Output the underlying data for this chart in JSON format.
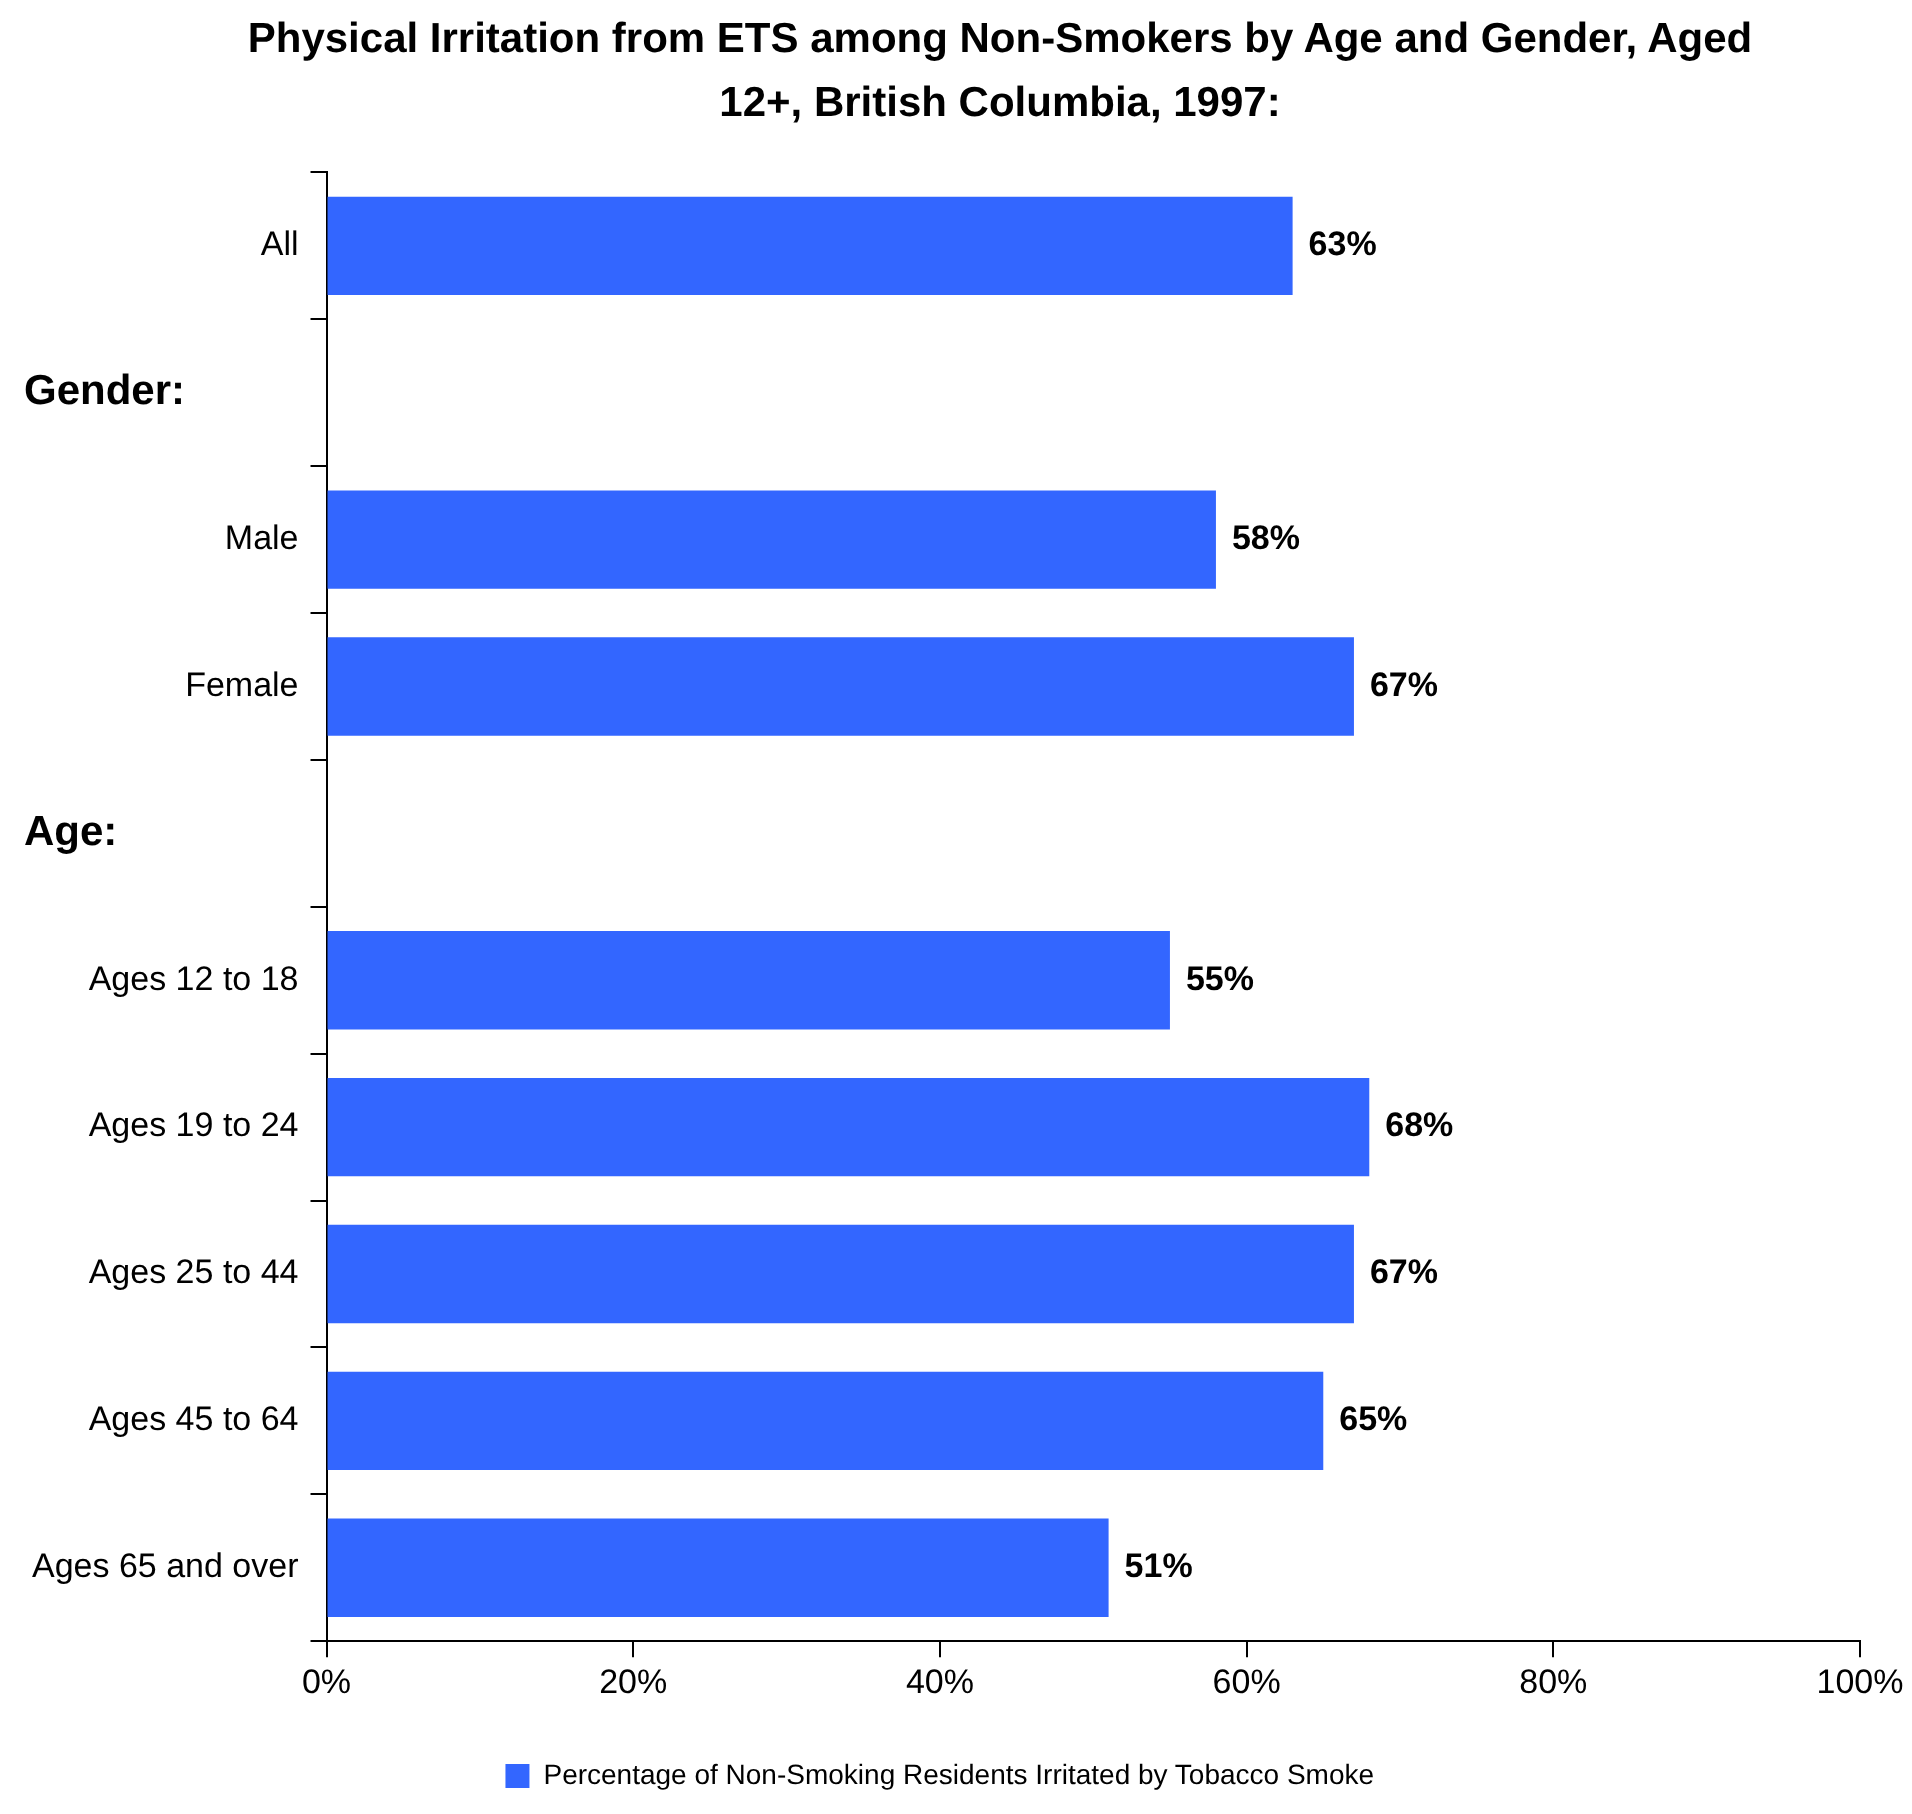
{
  "chart_data": {
    "type": "bar",
    "orientation": "horizontal",
    "title": "Physical Irritation from ETS among Non-Smokers by Age and Gender, Aged 12+, British Columbia, 1997:",
    "annotations": [
      "Gender:",
      "Age:"
    ],
    "categories": [
      "All",
      null,
      "Male",
      "Female",
      null,
      "Ages 12 to 18",
      "Ages 19 to 24",
      "Ages 25 to 44",
      "Ages 45 to 64",
      "Ages 65 and over"
    ],
    "series": [
      {
        "name": "Percentage of Non-Smoking Residents Irritated by Tobacco Smoke",
        "color": "#3366ff",
        "values": [
          63,
          null,
          58,
          67,
          null,
          55,
          68,
          67,
          65,
          51
        ],
        "value_labels": [
          "63%",
          null,
          "58%",
          "67%",
          null,
          "55%",
          "68%",
          "67%",
          "65%",
          "51%"
        ]
      }
    ],
    "xlim": [
      0,
      100
    ],
    "xticks": [
      {
        "value": 0,
        "label": "0%"
      },
      {
        "value": 20,
        "label": "20%"
      },
      {
        "value": 40,
        "label": "40%"
      },
      {
        "value": 60,
        "label": "60%"
      },
      {
        "value": 80,
        "label": "80%"
      },
      {
        "value": 100,
        "label": "100%"
      }
    ],
    "grid": false,
    "legend": "bottom"
  }
}
